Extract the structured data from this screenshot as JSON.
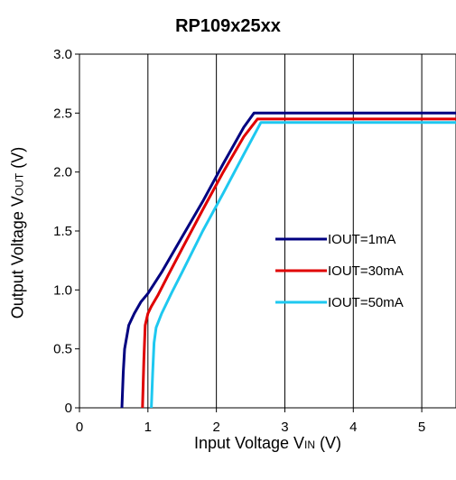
{
  "chart_data": {
    "type": "line",
    "title": "RP109x25xx",
    "xlabel": {
      "main": "Input Voltage V",
      "sub": "IN",
      "unit": " (V)"
    },
    "ylabel": {
      "main": "Output Voltage V",
      "sub": "OUT",
      "unit": " (V)"
    },
    "xlim": [
      0,
      5.5
    ],
    "ylim": [
      0,
      3.0
    ],
    "x_ticks": [
      0,
      1,
      2,
      3,
      4,
      5
    ],
    "x_tick_labels": [
      "0",
      "1",
      "2",
      "3",
      "4",
      "5"
    ],
    "y_ticks": [
      0,
      0.5,
      1.0,
      1.5,
      2.0,
      2.5,
      3.0
    ],
    "y_tick_labels": [
      "0",
      "0.5",
      "1.0",
      "1.5",
      "2.0",
      "2.5",
      "3.0"
    ],
    "grid": "vertical",
    "legend_position": "right-middle",
    "series": [
      {
        "name": "IOUT=1mA",
        "color": "#000080",
        "x": [
          0.62,
          0.64,
          0.66,
          0.72,
          0.8,
          0.9,
          1.0,
          1.2,
          1.5,
          1.8,
          2.1,
          2.4,
          2.55,
          2.6,
          5.5
        ],
        "y": [
          0.0,
          0.3,
          0.5,
          0.7,
          0.8,
          0.9,
          0.97,
          1.15,
          1.45,
          1.75,
          2.07,
          2.38,
          2.5,
          2.5,
          2.5
        ]
      },
      {
        "name": "IOUT=30mA",
        "color": "#e00000",
        "x": [
          0.92,
          0.94,
          0.96,
          1.0,
          1.05,
          1.15,
          1.3,
          1.5,
          1.8,
          2.1,
          2.4,
          2.6,
          2.65,
          5.5
        ],
        "y": [
          0.0,
          0.4,
          0.7,
          0.8,
          0.86,
          0.96,
          1.13,
          1.35,
          1.68,
          2.0,
          2.3,
          2.45,
          2.45,
          2.45
        ]
      },
      {
        "name": "IOUT=50mA",
        "color": "#1ec8f0",
        "x": [
          1.05,
          1.07,
          1.09,
          1.12,
          1.2,
          1.35,
          1.5,
          1.8,
          2.1,
          2.4,
          2.65,
          2.7,
          5.5
        ],
        "y": [
          0.0,
          0.3,
          0.55,
          0.68,
          0.8,
          0.98,
          1.15,
          1.5,
          1.82,
          2.15,
          2.42,
          2.42,
          2.42
        ]
      }
    ]
  }
}
